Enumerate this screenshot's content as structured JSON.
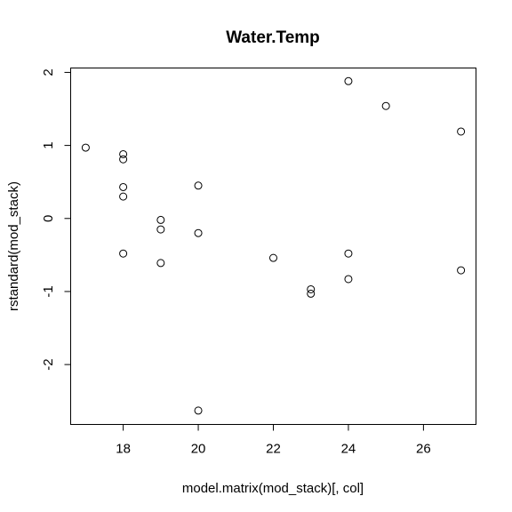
{
  "chart_data": {
    "type": "scatter",
    "title": "Water.Temp",
    "xlabel": "model.matrix(mod_stack)[, col]",
    "ylabel": "rstandard(mod_stack)",
    "xlim": [
      16.6,
      27.4
    ],
    "ylim": [
      -2.82,
      2.06
    ],
    "x_ticks": [
      18,
      20,
      22,
      24,
      26
    ],
    "x_tick_labels": [
      "18",
      "20",
      "22",
      "24",
      "26"
    ],
    "y_ticks": [
      -2,
      -1,
      0,
      1,
      2
    ],
    "y_tick_labels": [
      "-2",
      "-1",
      "0",
      "1",
      "2"
    ],
    "marker": "open-circle",
    "grid": false,
    "legend": "none",
    "points": [
      {
        "x": 17,
        "y": 0.97
      },
      {
        "x": 18,
        "y": 0.88
      },
      {
        "x": 18,
        "y": 0.81
      },
      {
        "x": 18,
        "y": 0.43
      },
      {
        "x": 18,
        "y": 0.3
      },
      {
        "x": 18,
        "y": -0.48
      },
      {
        "x": 19,
        "y": -0.02
      },
      {
        "x": 19,
        "y": -0.15
      },
      {
        "x": 19,
        "y": -0.61
      },
      {
        "x": 20,
        "y": 0.45
      },
      {
        "x": 20,
        "y": -0.2
      },
      {
        "x": 20,
        "y": -2.63
      },
      {
        "x": 22,
        "y": -0.54
      },
      {
        "x": 23,
        "y": -0.97
      },
      {
        "x": 23,
        "y": -1.03
      },
      {
        "x": 24,
        "y": 1.88
      },
      {
        "x": 24,
        "y": -0.48
      },
      {
        "x": 24,
        "y": -0.83
      },
      {
        "x": 25,
        "y": 1.54
      },
      {
        "x": 27,
        "y": 1.19
      },
      {
        "x": 27,
        "y": -0.71
      }
    ]
  }
}
